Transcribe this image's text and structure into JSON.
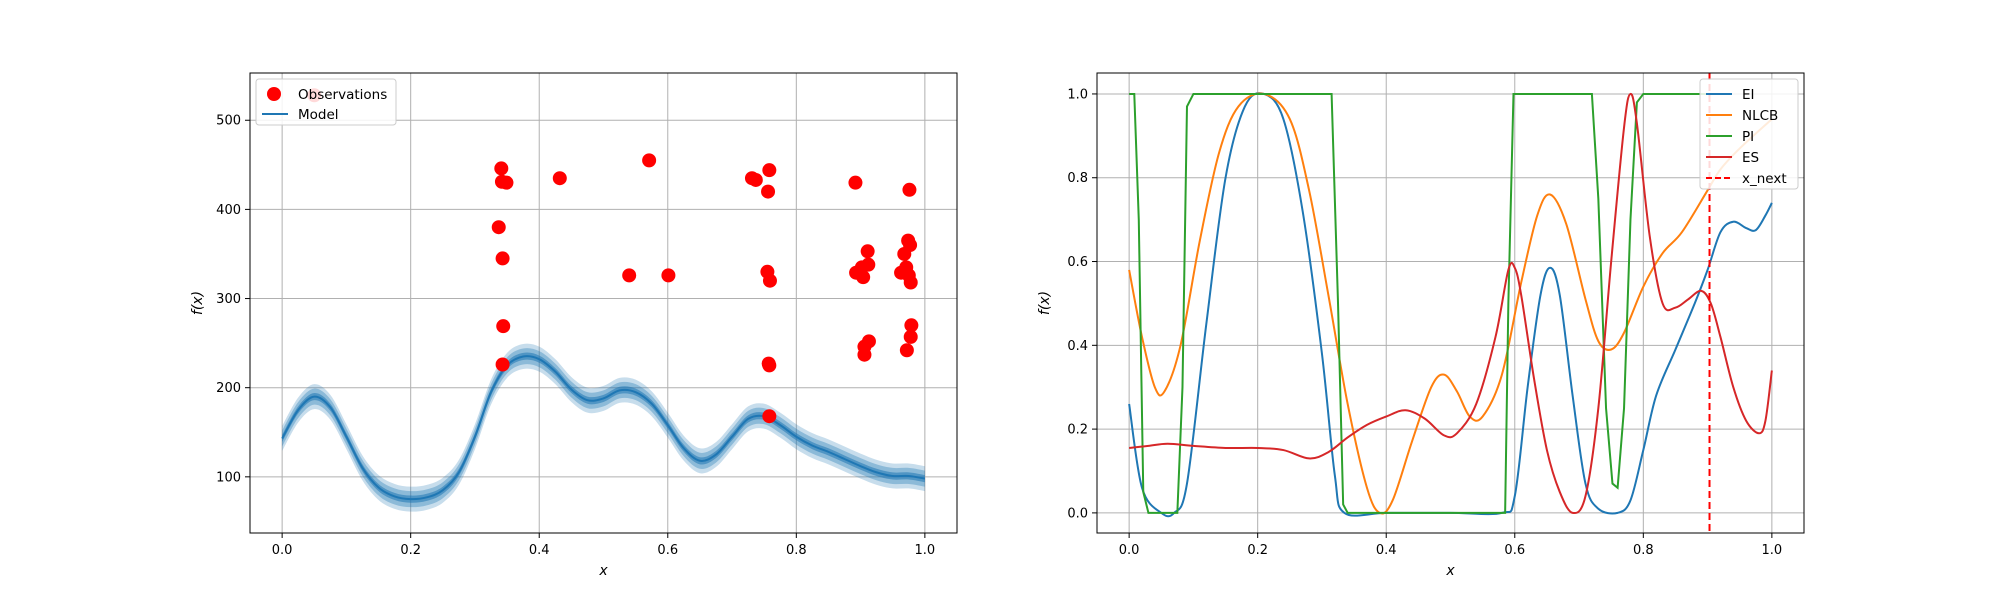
{
  "figure": {
    "panels": [
      "model-panel",
      "acquisition-panel"
    ]
  },
  "chart_data": [
    {
      "type": "scatter",
      "id": "model-panel",
      "title": "",
      "xlabel": "x",
      "ylabel": "f(x)",
      "xlim": [
        -0.05,
        1.05
      ],
      "ylim": [
        37,
        553
      ],
      "xticks": [
        0.0,
        0.2,
        0.4,
        0.6,
        0.8,
        1.0
      ],
      "xtick_labels": [
        "0.0",
        "0.2",
        "0.4",
        "0.6",
        "0.8",
        "1.0"
      ],
      "yticks": [
        100,
        200,
        300,
        400,
        500
      ],
      "ytick_labels": [
        "100",
        "200",
        "300",
        "400",
        "500"
      ],
      "grid": true,
      "legend": {
        "placement": "upper-left",
        "entries": [
          {
            "label": "Observations",
            "marker": "circle",
            "color": "#ff0000"
          },
          {
            "label": "Model",
            "marker": "line",
            "color": "#1f77b4"
          }
        ]
      },
      "series": [
        {
          "name": "Observations",
          "kind": "scatter",
          "color": "#ff0000",
          "points": [
            [
              0.05,
              528
            ],
            [
              0.337,
              380
            ],
            [
              0.341,
              446
            ],
            [
              0.342,
              431
            ],
            [
              0.343,
              345
            ],
            [
              0.344,
              269
            ],
            [
              0.343,
              226
            ],
            [
              0.349,
              430
            ],
            [
              0.432,
              435
            ],
            [
              0.54,
              326
            ],
            [
              0.571,
              455
            ],
            [
              0.601,
              326
            ],
            [
              0.731,
              435
            ],
            [
              0.737,
              433
            ],
            [
              0.755,
              330
            ],
            [
              0.756,
              420
            ],
            [
              0.758,
              444
            ],
            [
              0.759,
              320
            ],
            [
              0.757,
              227
            ],
            [
              0.758,
              225
            ],
            [
              0.758,
              168
            ],
            [
              0.892,
              430
            ],
            [
              0.893,
              329
            ],
            [
              0.902,
              335
            ],
            [
              0.904,
              324
            ],
            [
              0.906,
              246
            ],
            [
              0.906,
              237
            ],
            [
              0.911,
              353
            ],
            [
              0.912,
              338
            ],
            [
              0.913,
              252
            ],
            [
              0.963,
              329
            ],
            [
              0.968,
              350
            ],
            [
              0.971,
              335
            ],
            [
              0.972,
              242
            ],
            [
              0.974,
              365
            ],
            [
              0.975,
              326
            ],
            [
              0.976,
              422
            ],
            [
              0.977,
              360
            ],
            [
              0.978,
              257
            ],
            [
              0.978,
              318
            ],
            [
              0.979,
              270
            ]
          ]
        },
        {
          "name": "Model",
          "kind": "line",
          "color": "#1f77b4",
          "x": [
            0,
            0.025,
            0.05,
            0.075,
            0.1,
            0.125,
            0.15,
            0.175,
            0.2,
            0.225,
            0.25,
            0.275,
            0.3,
            0.325,
            0.35,
            0.375,
            0.4,
            0.425,
            0.45,
            0.475,
            0.5,
            0.525,
            0.55,
            0.575,
            0.6,
            0.625,
            0.65,
            0.675,
            0.7,
            0.725,
            0.75,
            0.775,
            0.8,
            0.825,
            0.85,
            0.875,
            0.9,
            0.925,
            0.95,
            0.975,
            1.0
          ],
          "y": [
            143,
            175,
            190,
            178,
            145,
            110,
            88,
            78,
            75,
            77,
            85,
            105,
            145,
            195,
            225,
            235,
            232,
            218,
            198,
            186,
            188,
            197,
            195,
            182,
            158,
            132,
            118,
            125,
            145,
            165,
            168,
            158,
            145,
            135,
            128,
            120,
            112,
            105,
            101,
            101,
            98
          ]
        },
        {
          "name": "Model band",
          "kind": "band",
          "color": "#1f77b4",
          "half_widths": [
            4,
            9,
            14
          ]
        }
      ]
    },
    {
      "type": "line",
      "id": "acquisition-panel",
      "title": "",
      "xlabel": "x",
      "ylabel": "f(x)",
      "xlim": [
        -0.05,
        1.05
      ],
      "ylim": [
        -0.048,
        1.05
      ],
      "xticks": [
        0.0,
        0.2,
        0.4,
        0.6,
        0.8,
        1.0
      ],
      "xtick_labels": [
        "0.0",
        "0.2",
        "0.4",
        "0.6",
        "0.8",
        "1.0"
      ],
      "yticks": [
        0.0,
        0.2,
        0.4,
        0.6,
        0.8,
        1.0
      ],
      "ytick_labels": [
        "0.0",
        "0.2",
        "0.4",
        "0.6",
        "0.8",
        "1.0"
      ],
      "grid": true,
      "legend": {
        "placement": "upper-right",
        "entries": [
          {
            "label": "EI",
            "color": "#1f77b4",
            "style": "solid"
          },
          {
            "label": "NLCB",
            "color": "#ff7f0e",
            "style": "solid"
          },
          {
            "label": "PI",
            "color": "#2ca02c",
            "style": "solid"
          },
          {
            "label": "ES",
            "color": "#d62728",
            "style": "solid"
          },
          {
            "label": "x_next",
            "color": "#ff0000",
            "style": "dashed"
          }
        ]
      },
      "x_next": 0.903,
      "series": [
        {
          "name": "EI",
          "color": "#1f77b4",
          "points": [
            [
              0,
              0.26
            ],
            [
              0.02,
              0.06
            ],
            [
              0.05,
              0
            ],
            [
              0.07,
              0
            ],
            [
              0.09,
              0.07
            ],
            [
              0.12,
              0.45
            ],
            [
              0.15,
              0.8
            ],
            [
              0.18,
              0.97
            ],
            [
              0.21,
              1.0
            ],
            [
              0.24,
              0.94
            ],
            [
              0.27,
              0.72
            ],
            [
              0.3,
              0.38
            ],
            [
              0.32,
              0.09
            ],
            [
              0.335,
              0
            ],
            [
              0.4,
              0
            ],
            [
              0.5,
              0
            ],
            [
              0.58,
              0
            ],
            [
              0.6,
              0.04
            ],
            [
              0.62,
              0.3
            ],
            [
              0.64,
              0.52
            ],
            [
              0.655,
              0.585
            ],
            [
              0.67,
              0.52
            ],
            [
              0.69,
              0.28
            ],
            [
              0.71,
              0.07
            ],
            [
              0.73,
              0.01
            ],
            [
              0.76,
              0.0
            ],
            [
              0.78,
              0.03
            ],
            [
              0.8,
              0.15
            ],
            [
              0.82,
              0.28
            ],
            [
              0.85,
              0.39
            ],
            [
              0.88,
              0.5
            ],
            [
              0.9,
              0.58
            ],
            [
              0.92,
              0.67
            ],
            [
              0.94,
              0.695
            ],
            [
              0.96,
              0.68
            ],
            [
              0.975,
              0.675
            ],
            [
              0.99,
              0.71
            ],
            [
              1.0,
              0.74
            ]
          ]
        },
        {
          "name": "NLCB",
          "color": "#ff7f0e",
          "points": [
            [
              0,
              0.58
            ],
            [
              0.02,
              0.42
            ],
            [
              0.04,
              0.3
            ],
            [
              0.055,
              0.29
            ],
            [
              0.08,
              0.4
            ],
            [
              0.11,
              0.65
            ],
            [
              0.14,
              0.86
            ],
            [
              0.17,
              0.97
            ],
            [
              0.21,
              1.0
            ],
            [
              0.25,
              0.94
            ],
            [
              0.28,
              0.77
            ],
            [
              0.31,
              0.52
            ],
            [
              0.34,
              0.26
            ],
            [
              0.37,
              0.06
            ],
            [
              0.39,
              0.0
            ],
            [
              0.41,
              0.03
            ],
            [
              0.44,
              0.17
            ],
            [
              0.47,
              0.3
            ],
            [
              0.49,
              0.33
            ],
            [
              0.51,
              0.29
            ],
            [
              0.53,
              0.23
            ],
            [
              0.55,
              0.23
            ],
            [
              0.58,
              0.33
            ],
            [
              0.61,
              0.55
            ],
            [
              0.635,
              0.71
            ],
            [
              0.655,
              0.76
            ],
            [
              0.68,
              0.69
            ],
            [
              0.71,
              0.51
            ],
            [
              0.73,
              0.41
            ],
            [
              0.75,
              0.39
            ],
            [
              0.77,
              0.43
            ],
            [
              0.8,
              0.54
            ],
            [
              0.83,
              0.62
            ],
            [
              0.86,
              0.67
            ],
            [
              0.9,
              0.77
            ],
            [
              0.92,
              0.82
            ],
            [
              0.95,
              0.87
            ],
            [
              1.0,
              0.94
            ]
          ]
        },
        {
          "name": "PI",
          "color": "#2ca02c",
          "points": [
            [
              0,
              1.0
            ],
            [
              0.008,
              1.0
            ],
            [
              0.015,
              0.7
            ],
            [
              0.022,
              0.05
            ],
            [
              0.03,
              0.0
            ],
            [
              0.075,
              0.0
            ],
            [
              0.083,
              0.3
            ],
            [
              0.09,
              0.97
            ],
            [
              0.1,
              1.0
            ],
            [
              0.315,
              1.0
            ],
            [
              0.325,
              0.5
            ],
            [
              0.333,
              0.02
            ],
            [
              0.34,
              0.0
            ],
            [
              0.585,
              0.0
            ],
            [
              0.59,
              0.5
            ],
            [
              0.598,
              1.0
            ],
            [
              0.72,
              1.0
            ],
            [
              0.73,
              0.75
            ],
            [
              0.742,
              0.25
            ],
            [
              0.752,
              0.07
            ],
            [
              0.76,
              0.06
            ],
            [
              0.77,
              0.25
            ],
            [
              0.78,
              0.7
            ],
            [
              0.79,
              0.98
            ],
            [
              0.8,
              1.0
            ],
            [
              0.885,
              1.0
            ],
            [
              0.9,
              1.0
            ]
          ]
        },
        {
          "name": "ES",
          "color": "#d62728",
          "points": [
            [
              0,
              0.155
            ],
            [
              0.03,
              0.16
            ],
            [
              0.06,
              0.165
            ],
            [
              0.1,
              0.16
            ],
            [
              0.15,
              0.155
            ],
            [
              0.2,
              0.155
            ],
            [
              0.24,
              0.15
            ],
            [
              0.28,
              0.13
            ],
            [
              0.31,
              0.145
            ],
            [
              0.34,
              0.18
            ],
            [
              0.37,
              0.21
            ],
            [
              0.4,
              0.23
            ],
            [
              0.43,
              0.245
            ],
            [
              0.46,
              0.225
            ],
            [
              0.49,
              0.185
            ],
            [
              0.51,
              0.19
            ],
            [
              0.54,
              0.26
            ],
            [
              0.57,
              0.42
            ],
            [
              0.59,
              0.58
            ],
            [
              0.6,
              0.585
            ],
            [
              0.61,
              0.52
            ],
            [
              0.63,
              0.32
            ],
            [
              0.65,
              0.15
            ],
            [
              0.67,
              0.05
            ],
            [
              0.69,
              0.0
            ],
            [
              0.71,
              0.04
            ],
            [
              0.73,
              0.25
            ],
            [
              0.75,
              0.6
            ],
            [
              0.77,
              0.92
            ],
            [
              0.78,
              1.0
            ],
            [
              0.79,
              0.93
            ],
            [
              0.81,
              0.66
            ],
            [
              0.83,
              0.5
            ],
            [
              0.85,
              0.49
            ],
            [
              0.87,
              0.51
            ],
            [
              0.89,
              0.53
            ],
            [
              0.905,
              0.5
            ],
            [
              0.92,
              0.42
            ],
            [
              0.94,
              0.3
            ],
            [
              0.96,
              0.22
            ],
            [
              0.98,
              0.19
            ],
            [
              0.99,
              0.22
            ],
            [
              1.0,
              0.34
            ]
          ]
        }
      ]
    }
  ]
}
